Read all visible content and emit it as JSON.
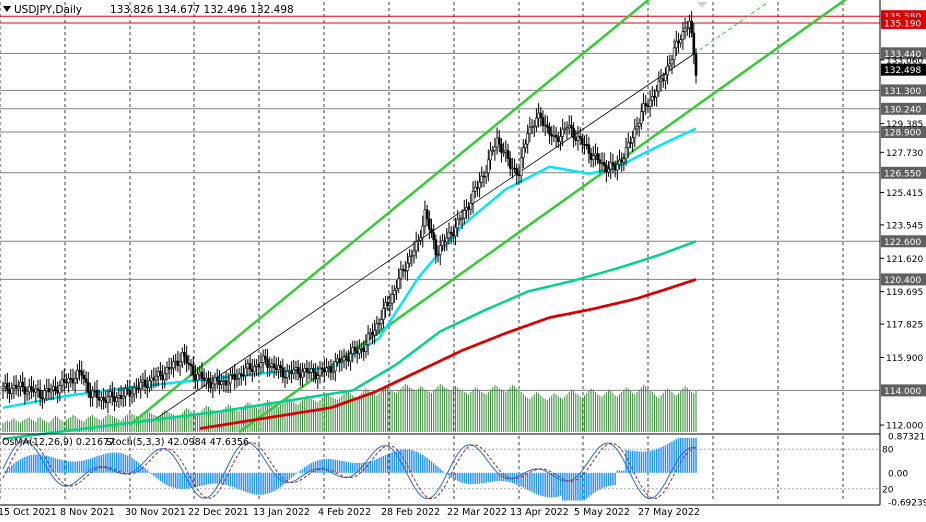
{
  "header": {
    "title": "USDJPY,Daily",
    "ohlc": "133.826 134.677 132.496 132.498"
  },
  "indicator_label": {
    "osma": "OsMA(12,26,9) 0.21677",
    "stoch": "Stoch(5,3,3) 42.0984 47.6356"
  },
  "colors": {
    "candles": "#000000",
    "channel": "#32cd32",
    "ema_fast": "#00e5ff",
    "ema_mid": "#00d48a",
    "ema_slow": "#dd0000",
    "volume": "#2e8b2e",
    "osma_hist": "#1e90ff",
    "stoch_main": "#1e6fd0",
    "stoch_signal": "#aa2222",
    "level_red": "#dd0000",
    "label_bg": "#606060",
    "current_bg": "#000000"
  },
  "chart_data": {
    "type": "candlestick",
    "symbol": "USDJPY",
    "timeframe": "Daily",
    "ylim": [
      111.6,
      136.4
    ],
    "x_labels": [
      "15 Oct 2021",
      "8 Nov 2021",
      "30 Nov 2021",
      "22 Dec 2021",
      "13 Jan 2022",
      "4 Feb 2022",
      "28 Feb 2022",
      "22 Mar 2022",
      "13 Apr 2022",
      "5 May 2022",
      "27 May 2022"
    ],
    "price_ticks": [
      "133.060",
      "129.385",
      "127.730",
      "125.415",
      "123.545",
      "121.620",
      "119.695",
      "117.825",
      "115.900",
      "112.000"
    ],
    "levels": [
      {
        "value": 135.58,
        "label": "135.580",
        "style": "red"
      },
      {
        "value": 135.19,
        "label": "135.190",
        "style": "red"
      },
      {
        "value": 133.44,
        "label": "133.440",
        "style": "gray"
      },
      {
        "value": 132.498,
        "label": "132.498",
        "style": "current"
      },
      {
        "value": 131.3,
        "label": "131.300",
        "style": "gray"
      },
      {
        "value": 130.24,
        "label": "130.240",
        "style": "gray"
      },
      {
        "value": 128.9,
        "label": "128.900",
        "style": "gray"
      },
      {
        "value": 126.55,
        "label": "126.550",
        "style": "gray"
      },
      {
        "value": 122.6,
        "label": "122.600",
        "style": "gray"
      },
      {
        "value": 120.4,
        "label": "120.400",
        "style": "gray"
      },
      {
        "value": 114.0,
        "label": "114.000",
        "style": "gray"
      }
    ],
    "close_path": [
      [
        0,
        114.1
      ],
      [
        8,
        114.2
      ],
      [
        18,
        113.8
      ],
      [
        24,
        114.1
      ],
      [
        30,
        114.6
      ],
      [
        36,
        115.0
      ],
      [
        40,
        113.8
      ],
      [
        46,
        113.5
      ],
      [
        55,
        113.7
      ],
      [
        62,
        114.2
      ],
      [
        68,
        114.6
      ],
      [
        76,
        115.2
      ],
      [
        82,
        116.0
      ],
      [
        88,
        114.9
      ],
      [
        96,
        114.4
      ],
      [
        104,
        114.6
      ],
      [
        112,
        115.2
      ],
      [
        120,
        115.7
      ],
      [
        128,
        115.0
      ],
      [
        136,
        115.1
      ],
      [
        144,
        115.0
      ],
      [
        150,
        115.3
      ],
      [
        158,
        116.0
      ],
      [
        165,
        116.5
      ],
      [
        172,
        118.0
      ],
      [
        178,
        119.5
      ],
      [
        184,
        121.2
      ],
      [
        190,
        122.5
      ],
      [
        193,
        124.3
      ],
      [
        198,
        122.0
      ],
      [
        204,
        122.9
      ],
      [
        210,
        124.0
      ],
      [
        214,
        125.0
      ],
      [
        220,
        126.5
      ],
      [
        226,
        128.5
      ],
      [
        232,
        127.0
      ],
      [
        236,
        126.5
      ],
      [
        240,
        129.0
      ],
      [
        246,
        129.8
      ],
      [
        252,
        128.4
      ],
      [
        258,
        129.2
      ],
      [
        262,
        128.7
      ],
      [
        268,
        127.8
      ],
      [
        274,
        127.0
      ],
      [
        280,
        126.8
      ],
      [
        286,
        128.0
      ],
      [
        292,
        130.0
      ],
      [
        300,
        131.5
      ],
      [
        306,
        133.2
      ],
      [
        310,
        134.5
      ],
      [
        314,
        135.2
      ],
      [
        317,
        132.5
      ]
    ],
    "ema_fast": [
      [
        0,
        113.0
      ],
      [
        30,
        113.7
      ],
      [
        60,
        114.2
      ],
      [
        90,
        114.6
      ],
      [
        120,
        115.0
      ],
      [
        150,
        115.3
      ],
      [
        172,
        117.0
      ],
      [
        190,
        120.5
      ],
      [
        210,
        123.5
      ],
      [
        230,
        125.6
      ],
      [
        250,
        126.9
      ],
      [
        268,
        126.5
      ],
      [
        280,
        126.8
      ],
      [
        292,
        127.6
      ],
      [
        305,
        128.4
      ],
      [
        317,
        129.1
      ]
    ],
    "ema_mid": [
      [
        0,
        111.2
      ],
      [
        50,
        112.0
      ],
      [
        100,
        112.8
      ],
      [
        140,
        113.6
      ],
      [
        160,
        114.0
      ],
      [
        180,
        115.5
      ],
      [
        200,
        117.4
      ],
      [
        220,
        118.6
      ],
      [
        240,
        119.7
      ],
      [
        260,
        120.3
      ],
      [
        280,
        121.0
      ],
      [
        300,
        121.8
      ],
      [
        317,
        122.6
      ]
    ],
    "ema_slow": [
      [
        90,
        111.8
      ],
      [
        110,
        112.2
      ],
      [
        130,
        112.6
      ],
      [
        150,
        113.0
      ],
      [
        170,
        113.9
      ],
      [
        190,
        115.1
      ],
      [
        210,
        116.3
      ],
      [
        230,
        117.3
      ],
      [
        250,
        118.2
      ],
      [
        270,
        118.7
      ],
      [
        290,
        119.3
      ],
      [
        305,
        119.9
      ],
      [
        317,
        120.4
      ]
    ],
    "channel_lines": [
      {
        "from": [
          58,
          112.0
        ],
        "to": [
          296,
          136.6
        ]
      },
      {
        "from": [
          108,
          111.6
        ],
        "to": [
          386,
          136.6
        ]
      },
      {
        "from": [
          68,
          112.2
        ],
        "to": [
          316,
          133.4
        ]
      }
    ],
    "dashed_projection": {
      "from": [
        316,
        133.4
      ],
      "to": [
        350,
        136.4
      ]
    },
    "volume": {
      "max": 42,
      "values": [
        8,
        9,
        10,
        9,
        11,
        12,
        10,
        9,
        8,
        10,
        11,
        12,
        13,
        11,
        10,
        9,
        12,
        13,
        11,
        10,
        9,
        8,
        10,
        12,
        14,
        13,
        11,
        10,
        9,
        11,
        12,
        13,
        15,
        14,
        12,
        11,
        10,
        9,
        11,
        13,
        14,
        15,
        13,
        12,
        11,
        10,
        12,
        14,
        16,
        15,
        14,
        13,
        12,
        11,
        10,
        12,
        14,
        15,
        17,
        16,
        15,
        14,
        13,
        12,
        14,
        16,
        18,
        17,
        16,
        15,
        14,
        13,
        15,
        17,
        19,
        18,
        17,
        16,
        15,
        14,
        13,
        15,
        17,
        19,
        21,
        20,
        18,
        17,
        16,
        15,
        17,
        19,
        21,
        23,
        22,
        20,
        19,
        18,
        17,
        16,
        18,
        20,
        22,
        24,
        23,
        21,
        20,
        19,
        18,
        20,
        22,
        24,
        26,
        25,
        23,
        22,
        21,
        20,
        22,
        24,
        26,
        28,
        27,
        25,
        24,
        23,
        22,
        24,
        26,
        28,
        30,
        29,
        27,
        26,
        25,
        24,
        26,
        28,
        30,
        32,
        31,
        29,
        28,
        27,
        26,
        28,
        30,
        32,
        34,
        33,
        31,
        30,
        29,
        28,
        30,
        32,
        34,
        36,
        35,
        33,
        32,
        31,
        30,
        32,
        34,
        36,
        38,
        37,
        35,
        34,
        33,
        32,
        34,
        36,
        38,
        40,
        39,
        37,
        36,
        35,
        34,
        36,
        38,
        40,
        42,
        41,
        39,
        38,
        37,
        36,
        38,
        40,
        39,
        37,
        36,
        35,
        34,
        36,
        38,
        40,
        42,
        41,
        39,
        38,
        37,
        36,
        38,
        40,
        39,
        37,
        36,
        35,
        34,
        33,
        35,
        37,
        39,
        38,
        36,
        35,
        34,
        33,
        35,
        37,
        39,
        41,
        40,
        38,
        37,
        36,
        35,
        37,
        39,
        41,
        40,
        38,
        36,
        35,
        33,
        31,
        30,
        29,
        31,
        33,
        35,
        34,
        32,
        30,
        29,
        28,
        30,
        32,
        34,
        33,
        31,
        30,
        29,
        31,
        33,
        35,
        37,
        36,
        34,
        33,
        31,
        30,
        32,
        34,
        36,
        38,
        37,
        35,
        33,
        32,
        31,
        33,
        35,
        37,
        36,
        34,
        32,
        31,
        33,
        35,
        37,
        39,
        38,
        36,
        34,
        33,
        35,
        37,
        39,
        41,
        40,
        38,
        36,
        35,
        33,
        31,
        30,
        32,
        34,
        36,
        38,
        37,
        35,
        33,
        32,
        34,
        36,
        38,
        40,
        39,
        37,
        35,
        34,
        36,
        38,
        40,
        42,
        41,
        39,
        37
      ]
    },
    "osma": {
      "ylim": [
        -0.69239,
        0.87321
      ],
      "ticks": [
        "0.87321",
        "0.00",
        "-0.69239"
      ]
    },
    "stoch": {
      "ylim": [
        0,
        100
      ],
      "levels": [
        80,
        20
      ],
      "level_labels": [
        "80",
        "20"
      ]
    }
  }
}
